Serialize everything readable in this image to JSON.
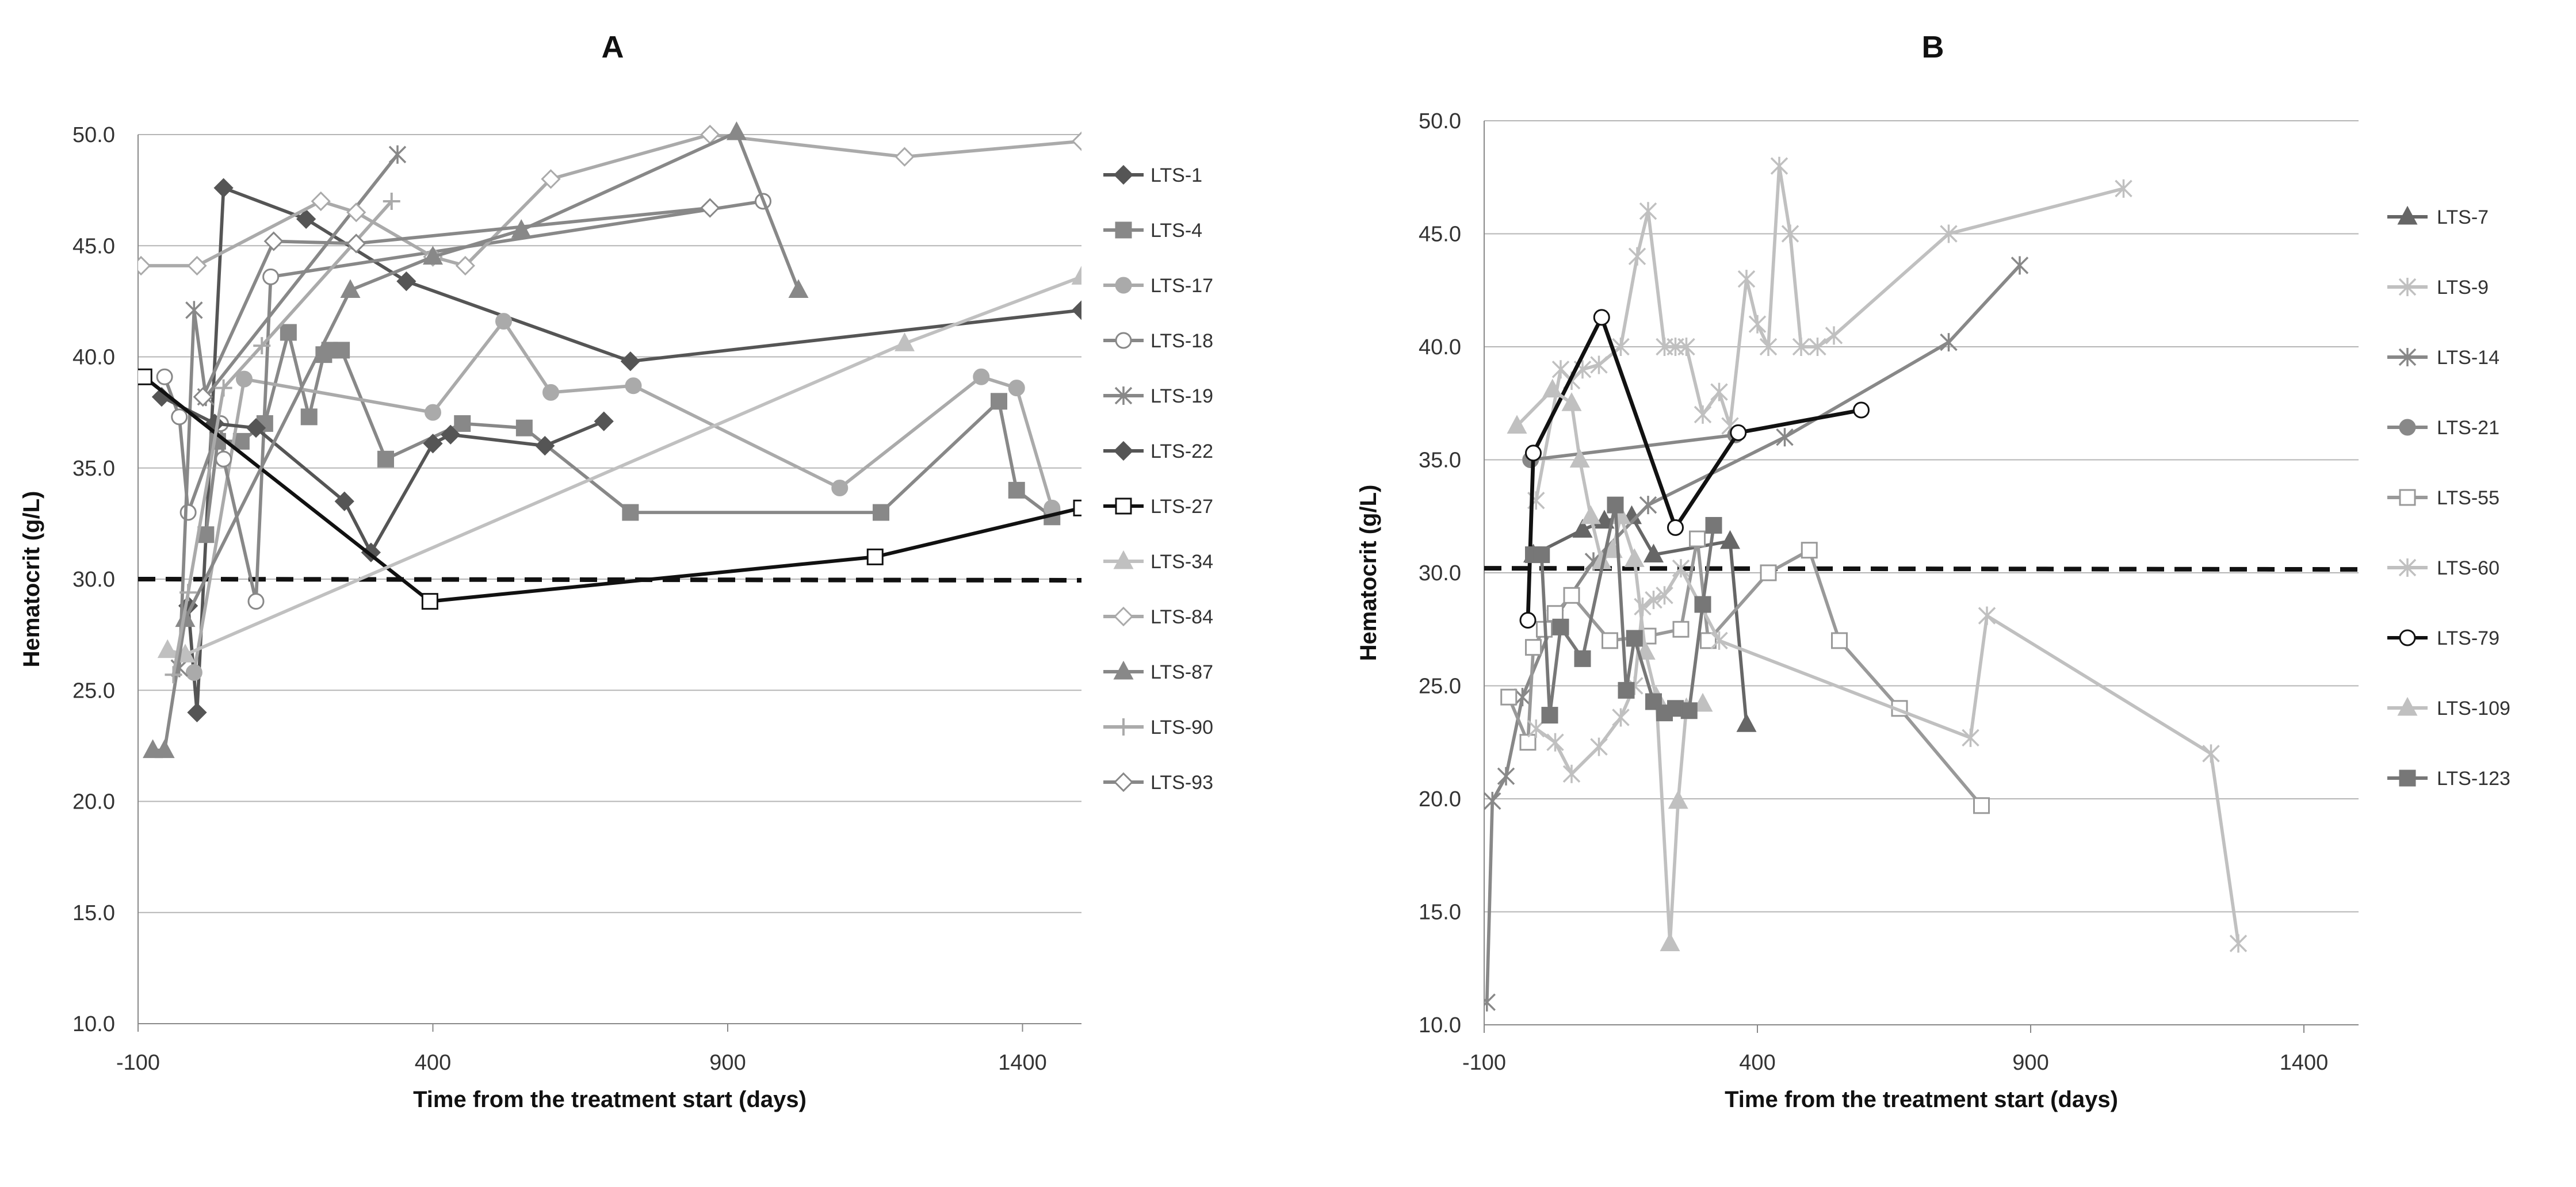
{
  "chart_data": [
    {
      "type": "line",
      "title": "A",
      "xlabel": "Time from the treatment start (days)",
      "ylabel": "Hematocrit  (g/L)",
      "xlim": [
        -100,
        1500
      ],
      "ylim": [
        10,
        50
      ],
      "xticks": [
        -100,
        400,
        900,
        1400
      ],
      "xtick_labels": [
        "-100",
        "400",
        "900",
        "1400"
      ],
      "yticks": [
        10,
        15,
        20,
        25,
        30,
        35,
        40,
        45,
        50
      ],
      "ytick_labels": [
        "10.0",
        "15.0",
        "20.0",
        "25.0",
        "30.0",
        "35.0",
        "40.0",
        "45.0",
        "50.0"
      ],
      "grid": true,
      "legend": "right",
      "threshold": 30,
      "series": [
        {
          "name": "LTS-1",
          "color": "#555555",
          "marker": "diamond",
          "fill": true,
          "width": 2.2,
          "x": [
            -15,
            0,
            45,
            185,
            355,
            735,
            1500
          ],
          "y": [
            28.8,
            24,
            47.6,
            46.2,
            43.4,
            39.8,
            42.1
          ]
        },
        {
          "name": "LTS-4",
          "color": "#888888",
          "marker": "square",
          "fill": true,
          "width": 2.2,
          "x": [
            15,
            35,
            75,
            115,
            155,
            190,
            215,
            225,
            245,
            320,
            450,
            555,
            735,
            1160,
            1360,
            1390,
            1450
          ],
          "y": [
            32,
            36.2,
            36.2,
            37,
            41.1,
            37.3,
            40.1,
            40.3,
            40.3,
            35.4,
            37,
            36.8,
            33,
            33,
            38,
            34,
            32.8
          ]
        },
        {
          "name": "LTS-17",
          "color": "#aaaaaa",
          "marker": "circle",
          "fill": true,
          "width": 2.2,
          "x": [
            -5,
            80,
            400,
            520,
            600,
            740,
            1090,
            1330,
            1390,
            1450
          ],
          "y": [
            25.8,
            39,
            37.5,
            41.6,
            38.4,
            38.7,
            34.1,
            39.1,
            38.6,
            33.2
          ]
        },
        {
          "name": "LTS-18",
          "color": "#888888",
          "marker": "circle",
          "fill": false,
          "width": 2.2,
          "x": [
            -55,
            -30,
            -15,
            40,
            45,
            100,
            125,
            960
          ],
          "y": [
            39.1,
            37.3,
            33,
            37,
            35.4,
            29,
            43.6,
            47
          ]
        },
        {
          "name": "LTS-19",
          "color": "#888888",
          "marker": "x",
          "fill": false,
          "width": 2.2,
          "x": [
            -30,
            -5,
            15,
            340
          ],
          "y": [
            26,
            42.1,
            38.2,
            49.1
          ]
        },
        {
          "name": "LTS-22",
          "color": "#555555",
          "marker": "diamond",
          "fill": true,
          "width": 2.2,
          "x": [
            -60,
            30,
            100,
            250,
            295,
            400,
            430,
            590,
            690
          ],
          "y": [
            38.2,
            37,
            36.8,
            33.5,
            31.2,
            36.1,
            36.5,
            36,
            37.1
          ]
        },
        {
          "name": "LTS-27",
          "color": "#111111",
          "marker": "square",
          "fill": false,
          "width": 2.4,
          "x": [
            -90,
            395,
            1150,
            1500
          ],
          "y": [
            39.1,
            29,
            31,
            33.2
          ]
        },
        {
          "name": "LTS-34",
          "color": "#c0c0c0",
          "marker": "triangle",
          "fill": true,
          "width": 2.2,
          "x": [
            -50,
            -20,
            1200,
            1500
          ],
          "y": [
            26.8,
            26.6,
            40.6,
            43.6
          ]
        },
        {
          "name": "LTS-84",
          "color": "#aaaaaa",
          "marker": "diamond",
          "fill": false,
          "width": 2.2,
          "x": [
            -95,
            0,
            210,
            270,
            400,
            455,
            600,
            870,
            1200,
            1500
          ],
          "y": [
            44.1,
            44.1,
            47,
            46.5,
            44.5,
            44.1,
            48,
            50,
            49,
            49.7
          ]
        },
        {
          "name": "LTS-87",
          "color": "#888888",
          "marker": "triangle",
          "fill": true,
          "width": 2.2,
          "x": [
            -75,
            -55,
            -20,
            260,
            400,
            550,
            915,
            1020
          ],
          "y": [
            22.3,
            22.3,
            28.2,
            43,
            44.5,
            45.7,
            50.1,
            43
          ]
        },
        {
          "name": "LTS-90",
          "color": "#aaaaaa",
          "marker": "plus",
          "fill": false,
          "width": 2.2,
          "x": [
            -40,
            -15,
            45,
            110,
            330
          ],
          "y": [
            25.7,
            29.4,
            38.6,
            40.5,
            47
          ]
        },
        {
          "name": "LTS-93",
          "color": "#888888",
          "marker": "diamond",
          "fill": false,
          "width": 2.2,
          "x": [
            10,
            130,
            270,
            870
          ],
          "y": [
            38.2,
            45.2,
            45.1,
            46.7
          ]
        }
      ]
    },
    {
      "type": "line",
      "title": "B",
      "xlabel": "Time from the treatment start (days)",
      "ylabel": "Hematocrit  (g/L)",
      "xlim": [
        -100,
        1500
      ],
      "ylim": [
        10,
        50
      ],
      "xticks": [
        -100,
        400,
        900,
        1400
      ],
      "xtick_labels": [
        "-100",
        "400",
        "900",
        "1400"
      ],
      "yticks": [
        10,
        15,
        20,
        25,
        30,
        35,
        40,
        45,
        50
      ],
      "ytick_labels": [
        "10.0",
        "15.0",
        "20.0",
        "25.0",
        "30.0",
        "35.0",
        "40.0",
        "45.0",
        "50.0"
      ],
      "grid": true,
      "legend": "right",
      "threshold": 30.2,
      "series": [
        {
          "name": "LTS-7",
          "color": "#666666",
          "marker": "triangle",
          "fill": true,
          "width": 2.2,
          "x": [
            -10,
            80,
            120,
            170,
            210,
            350,
            380
          ],
          "y": [
            30.8,
            31.9,
            32.3,
            32.5,
            30.8,
            31.4,
            23.3
          ]
        },
        {
          "name": "LTS-9",
          "color": "#c0c0c0",
          "marker": "x",
          "fill": false,
          "width": 2.2,
          "x": [
            -5,
            40,
            60,
            80,
            110,
            150,
            180,
            200,
            230,
            250,
            270,
            300,
            330,
            350,
            380,
            400,
            420,
            440,
            460,
            480,
            510,
            540,
            750,
            1070
          ],
          "y": [
            33.2,
            39,
            38.5,
            39,
            39.2,
            40,
            44,
            46,
            40,
            40,
            40,
            37,
            38,
            36.5,
            43,
            41,
            40,
            48,
            45,
            40,
            40,
            40.5,
            45,
            47
          ]
        },
        {
          "name": "LTS-14",
          "color": "#888888",
          "marker": "x",
          "fill": false,
          "width": 2.2,
          "x": [
            -95,
            -85,
            -60,
            -30,
            30,
            100,
            200,
            450,
            750,
            880
          ],
          "y": [
            11,
            19.9,
            21,
            24.5,
            28,
            30.5,
            33,
            36,
            40.2,
            43.6
          ]
        },
        {
          "name": "LTS-21",
          "color": "#888888",
          "marker": "circle",
          "fill": true,
          "width": 2.2,
          "x": [
            -15,
            360
          ],
          "y": [
            35,
            36.1
          ]
        },
        {
          "name": "LTS-55",
          "color": "#999999",
          "marker": "square",
          "fill": false,
          "width": 2.2,
          "x": [
            -55,
            -20,
            -10,
            10,
            30,
            60,
            130,
            200,
            260,
            290,
            310,
            420,
            495,
            550,
            660,
            810
          ],
          "y": [
            24.5,
            22.5,
            26.7,
            27.5,
            28.2,
            29,
            27,
            27.2,
            27.5,
            31.5,
            27,
            30,
            31,
            27,
            24,
            19.7
          ]
        },
        {
          "name": "LTS-60",
          "color": "#c0c0c0",
          "marker": "x",
          "fill": false,
          "width": 2.2,
          "x": [
            -5,
            30,
            60,
            110,
            150,
            175,
            190,
            210,
            230,
            260,
            330,
            790,
            820,
            1230,
            1280
          ],
          "y": [
            23.1,
            22.5,
            21.1,
            22.3,
            23.6,
            25,
            28.5,
            28.8,
            29,
            30.2,
            27,
            22.7,
            28.1,
            22,
            13.6
          ]
        },
        {
          "name": "LTS-79",
          "color": "#111111",
          "marker": "circle",
          "fill": false,
          "width": 2.6,
          "x": [
            -20,
            -10,
            115,
            250,
            365,
            590
          ],
          "y": [
            27.9,
            35.3,
            41.3,
            32,
            36.2,
            37.2
          ]
        },
        {
          "name": "LTS-109",
          "color": "#c0c0c0",
          "marker": "triangle",
          "fill": true,
          "width": 2.2,
          "x": [
            -40,
            25,
            60,
            75,
            95,
            115,
            135,
            150,
            175,
            195,
            215,
            240,
            255,
            270,
            300
          ],
          "y": [
            36.5,
            38.1,
            37.5,
            35,
            32.5,
            30.5,
            31,
            32.5,
            30.6,
            26.5,
            24.5,
            13.6,
            19.9,
            24,
            24.2
          ]
        },
        {
          "name": "LTS-123",
          "color": "#777777",
          "marker": "square",
          "fill": true,
          "width": 2.2,
          "x": [
            -10,
            5,
            20,
            40,
            80,
            140,
            160,
            175,
            210,
            230,
            250,
            275,
            300,
            320
          ],
          "y": [
            30.8,
            30.8,
            23.7,
            27.6,
            26.2,
            33,
            24.8,
            27.1,
            24.3,
            23.8,
            24,
            23.9,
            28.6,
            32.1
          ]
        }
      ]
    }
  ]
}
